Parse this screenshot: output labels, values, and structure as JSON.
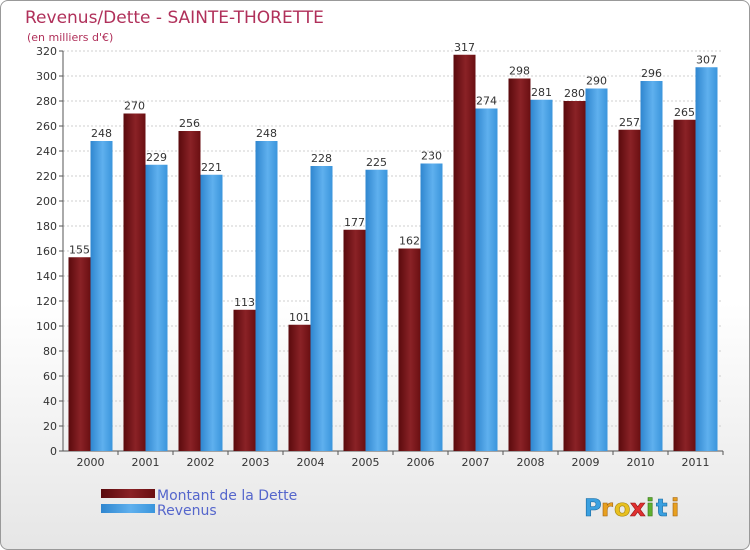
{
  "chart_data": {
    "type": "bar",
    "title": "Revenus/Dette - SAINTE-THORETTE",
    "subtitle": "(en milliers d'€)",
    "categories": [
      "2000",
      "2001",
      "2002",
      "2003",
      "2004",
      "2005",
      "2006",
      "2007",
      "2008",
      "2009",
      "2010",
      "2011"
    ],
    "series": [
      {
        "name": "Montant de la Dette",
        "color": "#7a1216",
        "values": [
          155,
          270,
          256,
          113,
          101,
          177,
          162,
          317,
          298,
          280,
          257,
          265
        ]
      },
      {
        "name": "Revenus",
        "color": "#3b93d9",
        "values": [
          248,
          229,
          221,
          248,
          228,
          225,
          230,
          274,
          281,
          290,
          296,
          307
        ]
      }
    ],
    "ylim": [
      0,
      320
    ],
    "yticks": [
      0,
      20,
      40,
      60,
      80,
      100,
      120,
      140,
      160,
      180,
      200,
      220,
      240,
      260,
      280,
      300,
      320
    ],
    "grid": true,
    "legend_position": "bottom-left"
  },
  "logo_text": "Proxiti"
}
